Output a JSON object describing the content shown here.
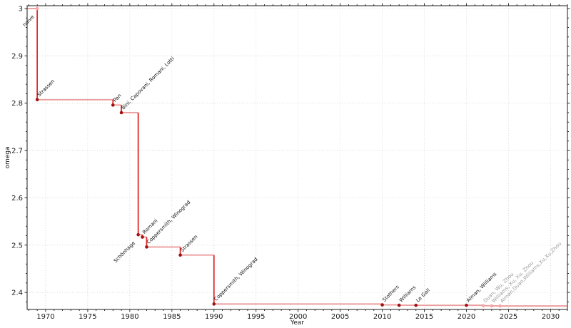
{
  "figure": {
    "background": "#ffffff"
  },
  "chart_data": {
    "type": "line",
    "drawstyle": "steps-post",
    "title": "",
    "xlabel": "Year",
    "ylabel": "omega",
    "xlim": [
      1967.8,
      2032.0
    ],
    "ylim": [
      2.364,
      3.006
    ],
    "grid": "dotted-major-both-axes",
    "legend": "none",
    "x_major_ticks": [
      1970,
      1975,
      1980,
      1985,
      1990,
      1995,
      2000,
      2005,
      2010,
      2015,
      2020,
      2025,
      2030
    ],
    "x_tick_labels": [
      "1970",
      "1975",
      "1980",
      "1985",
      "1990",
      "1995",
      "2000",
      "2005",
      "2010",
      "2015",
      "2020",
      "2025",
      "2030"
    ],
    "x_minor_step": 1,
    "y_major_ticks": [
      2.4,
      2.5,
      2.6,
      2.7,
      2.8,
      2.9,
      3.0
    ],
    "y_tick_labels": [
      "2.4",
      "2.5",
      "2.6",
      "2.7",
      "2.8",
      "2.9",
      "3"
    ],
    "y_minor_step": 0.02,
    "line_extends_left_to_axis": true,
    "line_extends_right_to_axis": true,
    "points": [
      {
        "label": "naive",
        "year": 1969,
        "omega": 3.0,
        "marker": "light",
        "label_color": "dark",
        "label_side": "lower-left"
      },
      {
        "label": "Strassen",
        "year": 1969,
        "omega": 2.8074,
        "marker": "dark",
        "label_color": "dark",
        "label_side": "upper-right"
      },
      {
        "label": "Pan",
        "year": 1978,
        "omega": 2.796,
        "marker": "dark",
        "label_color": "dark",
        "label_side": "upper-right"
      },
      {
        "label": "Bini, Capovani, Romani, Lotti",
        "year": 1979,
        "omega": 2.78,
        "marker": "dark",
        "label_color": "dark",
        "label_side": "upper-right"
      },
      {
        "label": "Schönhage",
        "year": 1981,
        "omega": 2.522,
        "marker": "dark",
        "label_color": "dark",
        "label_side": "lower-left"
      },
      {
        "label": "Romani",
        "year": 1981.5,
        "omega": 2.517,
        "marker": "dark",
        "label_color": "dark",
        "label_side": "upper-right"
      },
      {
        "label": "Coppersmith, Winograd",
        "year": 1982,
        "omega": 2.496,
        "marker": "dark",
        "label_color": "dark",
        "label_side": "upper-right"
      },
      {
        "label": "Strassen",
        "year": 1986,
        "omega": 2.479,
        "marker": "dark",
        "label_color": "dark",
        "label_side": "upper-right"
      },
      {
        "label": "Coppersmith, Winograd",
        "year": 1990,
        "omega": 2.3755,
        "marker": "dark",
        "label_color": "dark",
        "label_side": "upper-right"
      },
      {
        "label": "Stothers",
        "year": 2010,
        "omega": 2.3737,
        "marker": "dark",
        "label_color": "dark",
        "label_side": "upper-right"
      },
      {
        "label": "Williams",
        "year": 2012,
        "omega": 2.3729,
        "marker": "dark",
        "label_color": "dark",
        "label_side": "upper-right"
      },
      {
        "label": "Le Gall",
        "year": 2014,
        "omega": 2.3728,
        "marker": "dark",
        "label_color": "dark",
        "label_side": "upper-right"
      },
      {
        "label": "Alman, Williams",
        "year": 2020,
        "omega": 2.37286,
        "marker": "dark",
        "label_color": "dark",
        "label_side": "upper-right"
      },
      {
        "label": "Duan, Wu, Zhou",
        "year": 2022,
        "omega": 2.37188,
        "marker": "light",
        "label_color": "gray",
        "label_side": "upper-right"
      },
      {
        "label": "Williams, Xu, Xu, Zhou",
        "year": 2023,
        "omega": 2.371552,
        "marker": "light",
        "label_color": "gray",
        "label_side": "upper-right"
      },
      {
        "label": "Alman,Duan,Williams,Xu,Xu,Zhou",
        "year": 2024,
        "omega": 2.371339,
        "marker": "light",
        "label_color": "gray",
        "label_side": "upper-right"
      }
    ],
    "colors": {
      "step_horizontal": "#ec9e9e",
      "step_vertical": "#e12828",
      "marker_dark": "#a01212",
      "marker_light": "#f2a6a6",
      "label_dark": "#111111",
      "label_gray": "#9a9a9a",
      "grid": "#cfcfcf",
      "axis": "#1a1a1a",
      "tick_label": "#1a1a1a"
    }
  }
}
